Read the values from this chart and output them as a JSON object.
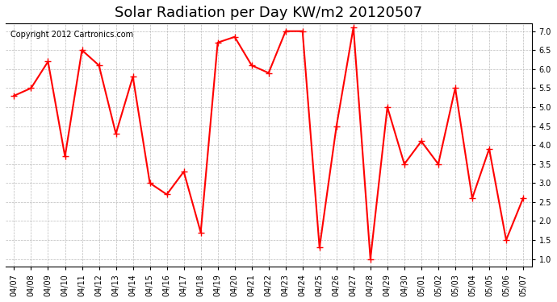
{
  "title": "Solar Radiation per Day KW/m2 20120507",
  "copyright": "Copyright 2012 Cartronics.com",
  "line_color": "#ff0000",
  "bg_color": "#ffffff",
  "grid_color": "#aaaaaa",
  "dates": [
    "04/07",
    "04/08",
    "04/09",
    "04/10",
    "04/11",
    "04/12",
    "04/13",
    "04/14",
    "04/15",
    "04/16",
    "04/17",
    "04/18",
    "04/19",
    "04/20",
    "04/21",
    "04/22",
    "04/23",
    "04/24",
    "04/25",
    "04/26",
    "04/27",
    "04/28",
    "04/29",
    "04/30",
    "05/01",
    "05/02",
    "05/03",
    "05/04",
    "05/05",
    "05/06",
    "05/07"
  ],
  "values": [
    5.3,
    5.5,
    6.2,
    3.7,
    6.5,
    6.1,
    4.3,
    5.8,
    3.0,
    2.7,
    3.3,
    1.7,
    6.7,
    6.85,
    6.1,
    5.9,
    7.0,
    7.0,
    1.3,
    4.5,
    7.1,
    1.0,
    5.0,
    3.5,
    4.1,
    3.5,
    5.5,
    2.6,
    3.9,
    1.5,
    2.6
  ],
  "ylim": [
    0.8,
    7.2
  ],
  "yticks": [
    1.0,
    1.5,
    2.0,
    2.5,
    3.0,
    3.5,
    4.0,
    4.5,
    5.0,
    5.5,
    6.0,
    6.5,
    7.0
  ],
  "marker": "+",
  "marker_size": 6,
  "line_width": 1.5,
  "title_fontsize": 13,
  "tick_fontsize": 7,
  "copyright_fontsize": 7
}
